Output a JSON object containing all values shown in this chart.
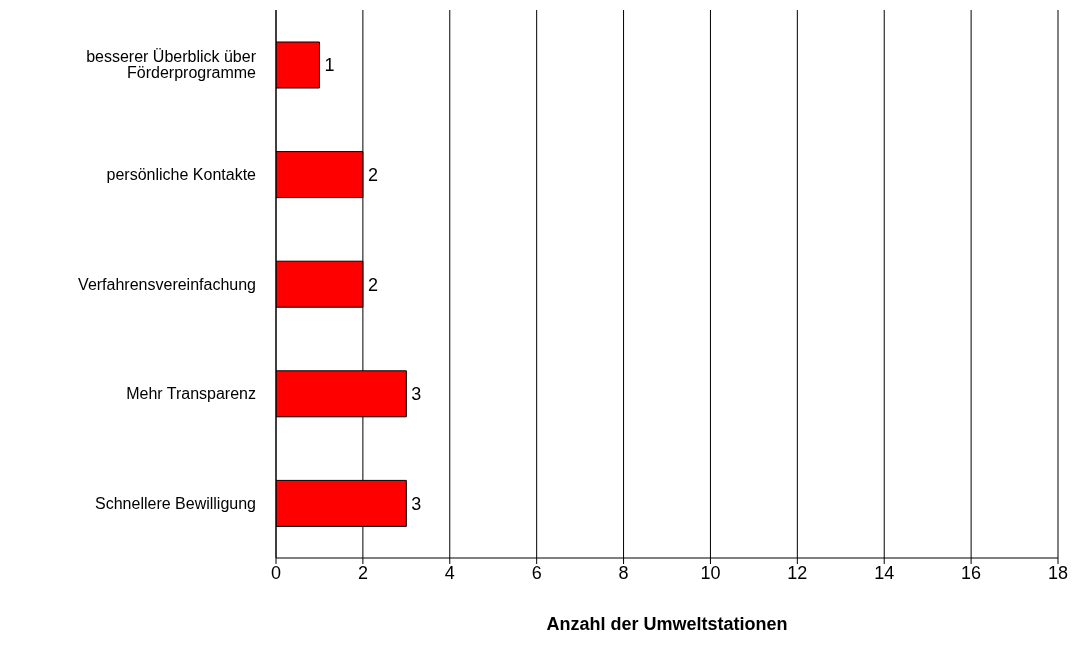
{
  "chart_data": {
    "type": "bar",
    "orientation": "horizontal",
    "categories": [
      "besserer Überblick über Förderprogramme",
      "persönliche Kontakte",
      "Verfahrensvereinfachung",
      "Mehr Transparenz",
      "Schnellere Bewilligung"
    ],
    "values": [
      1,
      2,
      2,
      3,
      3
    ],
    "color": "#ff0000",
    "xlim": [
      0,
      18
    ],
    "xticks": [
      0,
      2,
      4,
      6,
      8,
      10,
      12,
      14,
      16,
      18
    ],
    "xlabel": "Anzahl der Umweltstationen",
    "grid": "x",
    "data_labels": true,
    "legend": false
  }
}
